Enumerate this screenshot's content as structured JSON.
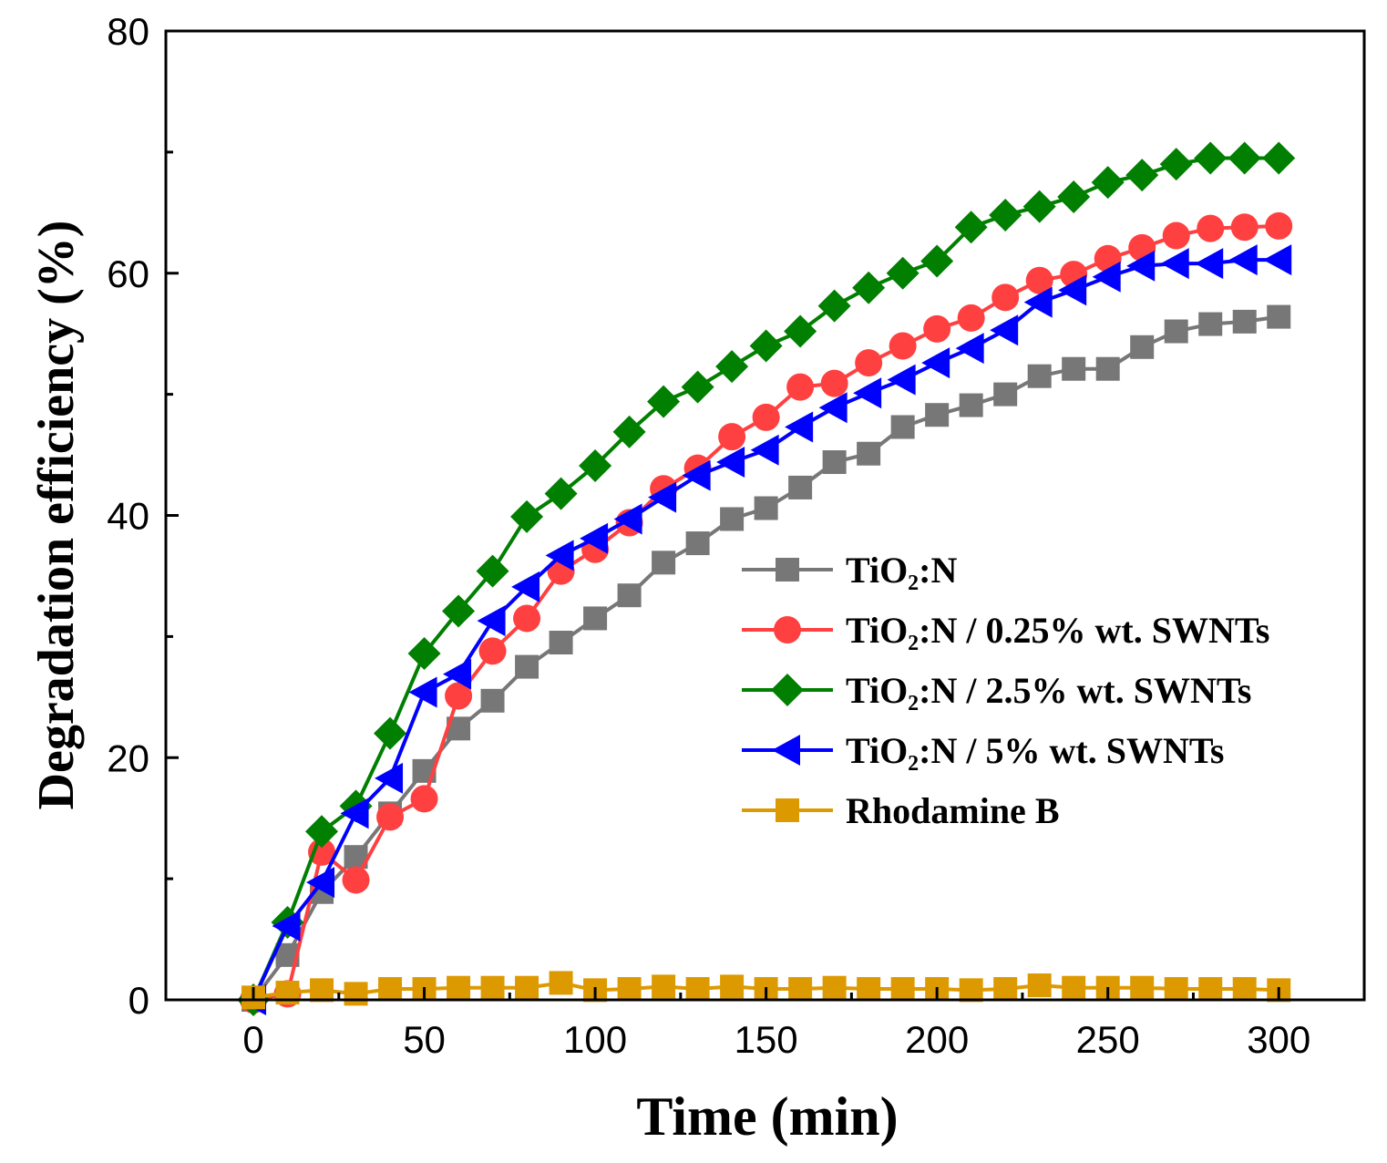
{
  "chart_data": {
    "type": "line",
    "title": "",
    "xlabel": "Time (min)",
    "ylabel": "Degradation efficiency (%)",
    "xlim": [
      -25.6,
      325
    ],
    "ylim": [
      0,
      80
    ],
    "xticks": [
      0,
      50,
      100,
      150,
      200,
      250,
      300
    ],
    "yticks": [
      0,
      20,
      40,
      60,
      80
    ],
    "grid": false,
    "legend_position": "center-right",
    "x": [
      0,
      10,
      20,
      30,
      40,
      50,
      60,
      70,
      80,
      90,
      100,
      110,
      120,
      130,
      140,
      150,
      160,
      170,
      180,
      190,
      200,
      210,
      220,
      230,
      240,
      250,
      260,
      270,
      280,
      290,
      300
    ],
    "series": [
      {
        "name": "TiO₂:N",
        "color": "#777777",
        "marker": "square",
        "values": [
          0,
          3.7,
          8.9,
          11.8,
          15.4,
          18.9,
          22.4,
          24.7,
          27.5,
          29.5,
          31.5,
          33.4,
          36.1,
          37.7,
          39.7,
          40.6,
          42.3,
          44.4,
          45.1,
          47.3,
          48.3,
          49.1,
          50.0,
          51.5,
          52.1,
          52.1,
          53.9,
          55.2,
          55.8,
          56.0,
          56.4
        ]
      },
      {
        "name": "TiO₂:N / 0.25% wt. SWNTs",
        "color": "#ff4040",
        "marker": "circle",
        "values": [
          0,
          0.5,
          12.2,
          9.9,
          15.1,
          16.6,
          25.1,
          28.8,
          31.5,
          35.4,
          37.2,
          39.4,
          42.2,
          43.9,
          46.5,
          48.1,
          50.6,
          50.9,
          52.6,
          54.0,
          55.4,
          56.3,
          58.0,
          59.4,
          59.9,
          61.2,
          62.1,
          63.1,
          63.7,
          63.8,
          63.9
        ]
      },
      {
        "name": "TiO₂:N / 2.5% wt. SWNTs",
        "color": "#007f00",
        "marker": "diamond",
        "values": [
          0,
          6.4,
          13.9,
          16.0,
          22.0,
          28.6,
          32.1,
          35.4,
          39.9,
          41.8,
          44.1,
          46.9,
          49.4,
          50.6,
          52.3,
          54.0,
          55.2,
          57.3,
          58.8,
          60.0,
          61.0,
          63.8,
          64.8,
          65.5,
          66.3,
          67.5,
          68.1,
          69.0,
          69.5,
          69.5,
          69.5
        ]
      },
      {
        "name": "TiO₂:N / 5% wt. SWNTs",
        "color": "#0000ff",
        "marker": "triangle-left",
        "values": [
          0,
          6.1,
          9.7,
          15.4,
          18.3,
          25.4,
          26.9,
          31.3,
          34.1,
          36.7,
          38.1,
          39.7,
          41.5,
          43.3,
          44.4,
          45.4,
          47.3,
          48.9,
          50.1,
          51.2,
          52.6,
          53.8,
          55.3,
          57.6,
          58.6,
          59.7,
          60.6,
          60.8,
          60.8,
          61.1,
          61.1
        ]
      },
      {
        "name": "Rhodamine B",
        "color": "#dd9a00",
        "marker": "square",
        "values": [
          0.2,
          0.6,
          0.8,
          0.5,
          0.9,
          0.9,
          1.0,
          1.0,
          1.0,
          1.4,
          0.8,
          0.9,
          1.1,
          0.9,
          1.1,
          0.9,
          0.9,
          1.0,
          0.9,
          0.9,
          0.9,
          0.8,
          0.9,
          1.2,
          1.0,
          1.0,
          1.0,
          0.9,
          0.9,
          0.9,
          0.8
        ]
      }
    ]
  }
}
